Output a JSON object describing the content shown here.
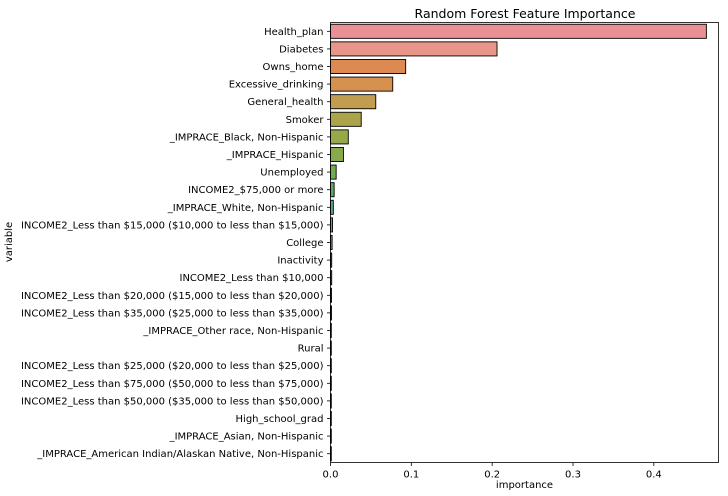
{
  "chart_data": {
    "type": "bar",
    "orientation": "horizontal",
    "title": "Random Forest Feature Importance",
    "xlabel": "importance",
    "ylabel": "variable",
    "xlim": [
      0,
      0.48
    ],
    "xticks": [
      "0.0",
      "0.1",
      "0.2",
      "0.3",
      "0.4"
    ],
    "xtick_values": [
      0,
      0.1,
      0.2,
      0.3,
      0.4
    ],
    "grid": false,
    "categories": [
      "Health_plan",
      "Diabetes",
      "Owns_home",
      "Excessive_drinking",
      "General_health",
      "Smoker",
      "_IMPRACE_Black, Non-Hispanic",
      "_IMPRACE_Hispanic",
      "Unemployed",
      "INCOME2_$75,000 or more",
      "_IMPRACE_White, Non-Hispanic",
      "INCOME2_Less than $15,000 ($10,000 to less than $15,000)",
      "College",
      "Inactivity",
      "INCOME2_Less than $10,000",
      "INCOME2_Less than $20,000 ($15,000 to less than $20,000)",
      "INCOME2_Less than $35,000 ($25,000 to less than $35,000)",
      "_IMPRACE_Other race, Non-Hispanic",
      "Rural",
      "INCOME2_Less than $25,000 ($20,000 to less than $25,000)",
      "INCOME2_Less than $75,000 ($50,000 to less than $75,000)",
      "INCOME2_Less than $50,000 ($35,000 to less than $50,000)",
      "High_school_grad",
      "_IMPRACE_Asian, Non-Hispanic",
      "_IMPRACE_American Indian/Alaskan Native, Non-Hispanic"
    ],
    "values": [
      0.465,
      0.206,
      0.093,
      0.077,
      0.056,
      0.038,
      0.022,
      0.016,
      0.007,
      0.0045,
      0.0035,
      0.0025,
      0.002,
      0.0015,
      0.0015,
      0.0012,
      0.0012,
      0.001,
      0.001,
      0.001,
      0.001,
      0.001,
      0.0008,
      0.0008,
      0.0008
    ],
    "colors": [
      "#ea8f94",
      "#e9968a",
      "#dd8a52",
      "#d6914e",
      "#c29d4f",
      "#aba44b",
      "#97a84a",
      "#87ab4b",
      "#71ad4c",
      "#5aae5d",
      "#54ad7b",
      "#52ab8b",
      "#53aa97",
      "#54a9a2",
      "#56a7ab",
      "#58a6b5",
      "#5ba4c0",
      "#62a0d0",
      "#7d98df",
      "#9d8fe1",
      "#b685e0",
      "#cd7add",
      "#dc75cc",
      "#e477b4",
      "#e8809e"
    ]
  }
}
